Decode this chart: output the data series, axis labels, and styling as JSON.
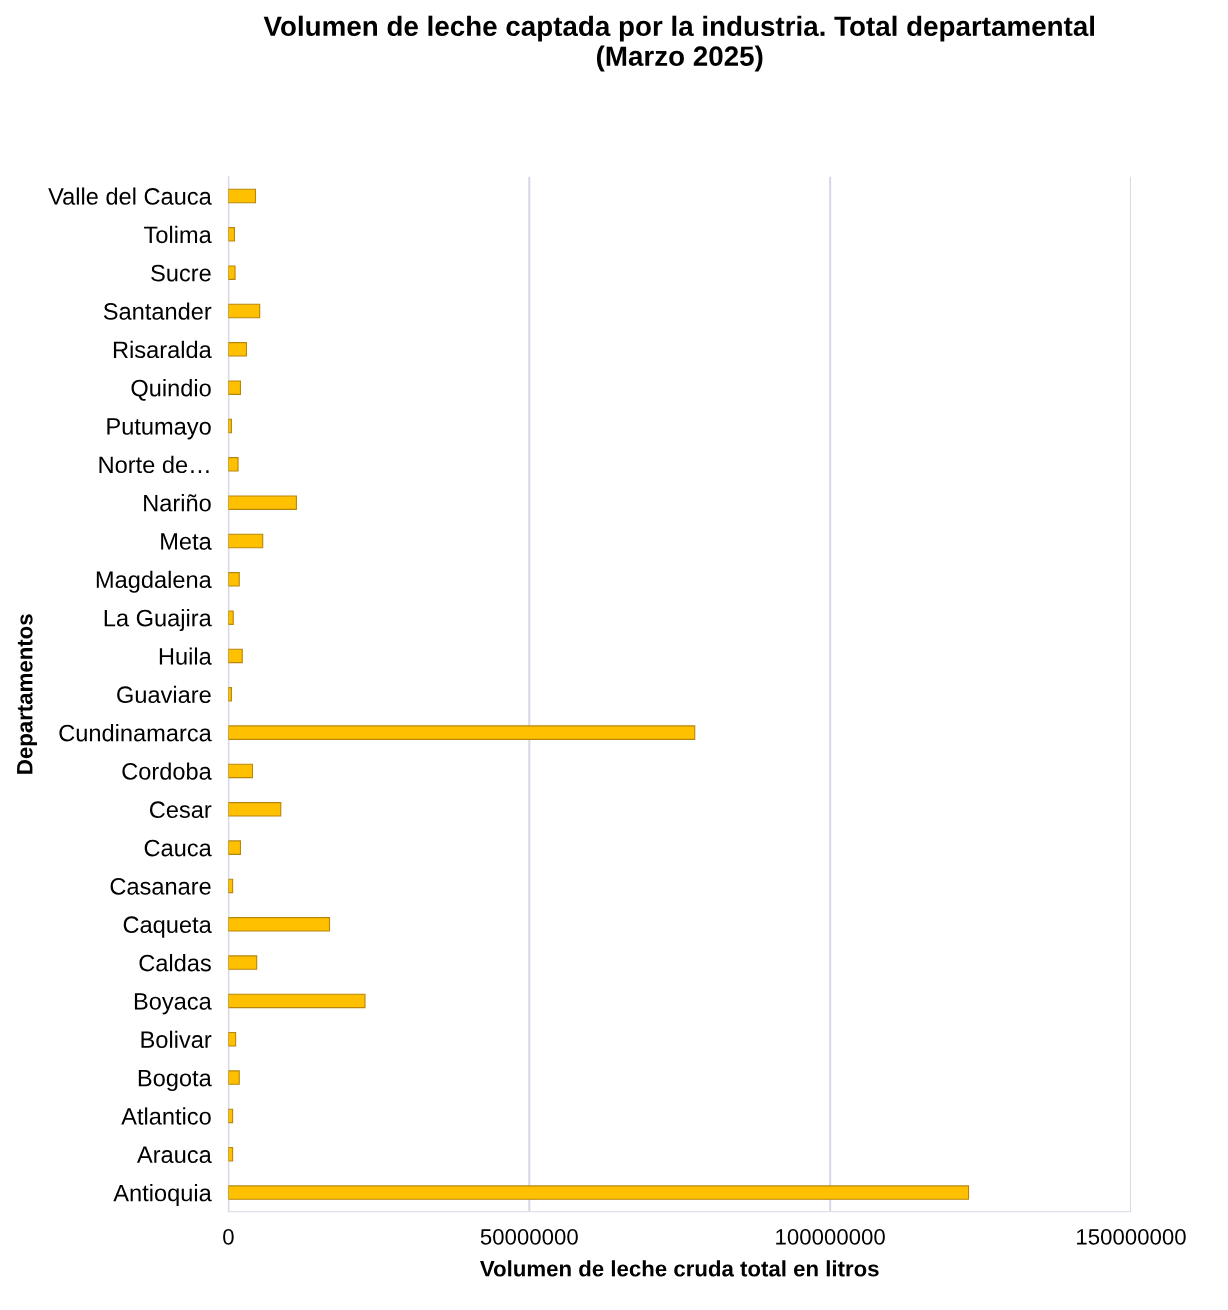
{
  "chart_data": {
    "type": "bar",
    "orientation": "horizontal",
    "title": "Volumen de leche captada por la industria. Total departamental\n(Marzo 2025)",
    "xlabel": "Volumen de leche cruda total en litros",
    "ylabel": "Departamentos",
    "categories": [
      "Valle del Cauca",
      "Tolima",
      "Sucre",
      "Santander",
      "Risaralda",
      "Quindio",
      "Putumayo",
      "Norte de…",
      "Nariño",
      "Meta",
      "Magdalena",
      "La Guajira",
      "Huila",
      "Guaviare",
      "Cundinamarca",
      "Cordoba",
      "Cesar",
      "Cauca",
      "Casanare",
      "Caqueta",
      "Caldas",
      "Boyaca",
      "Bolivar",
      "Bogota",
      "Atlantico",
      "Arauca",
      "Antioquia"
    ],
    "values": [
      4500000,
      1000000,
      1100000,
      5200000,
      3000000,
      2000000,
      500000,
      1600000,
      11300000,
      5700000,
      1800000,
      800000,
      2300000,
      500000,
      77500000,
      4000000,
      8700000,
      2000000,
      700000,
      16800000,
      4700000,
      22700000,
      1200000,
      1800000,
      700000,
      700000,
      123000000
    ],
    "color": "#ffc000",
    "xlim": [
      0,
      150000000
    ],
    "xticks": [
      0,
      50000000,
      100000000,
      150000000
    ],
    "grid": "x",
    "legend": false
  }
}
